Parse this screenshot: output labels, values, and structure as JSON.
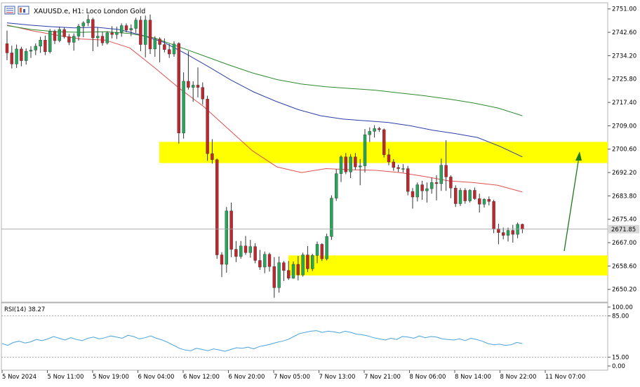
{
  "header": {
    "symbol_text": "XAUUSD.e, H1:  Loco London Gold"
  },
  "price_axis": {
    "ticks": [
      "2751.00",
      "2742.60",
      "2734.20",
      "2725.80",
      "2717.40",
      "2709.00",
      "2700.60",
      "2692.20",
      "2683.80",
      "2675.40",
      "2667.00",
      "2658.60",
      "2650.20"
    ],
    "current_price_label": "2671.85"
  },
  "rsi_panel": {
    "label": "RSI(14) 38.27",
    "ticks": [
      "100.00",
      "85.00",
      "15.00",
      "0.00"
    ]
  },
  "time_axis": {
    "labels": [
      "5 Nov 2024",
      "5 Nov 11:00",
      "5 Nov 19:00",
      "6 Nov 04:00",
      "6 Nov 12:00",
      "6 Nov 20:00",
      "7 Nov 05:00",
      "7 Nov 13:00",
      "7 Nov 21:00",
      "8 Nov 06:00",
      "8 Nov 14:00",
      "8 Nov 22:00",
      "11 Nov 07:00"
    ]
  },
  "colors": {
    "bull": "#26a65b",
    "bear": "#c0262d",
    "ma_fast": "#e05050",
    "ma_mid": "#2b3fa8",
    "ma_slow": "#2e8b2e",
    "zone": "#ffff00",
    "rsi_line": "#4aa3df",
    "arrow": "#1a7a1a"
  },
  "chart_data": [
    {
      "type": "candlestick",
      "symbol": "XAUUSD.e",
      "timeframe": "H1",
      "ylim": [
        2645.6,
        2753.2
      ],
      "current_price": 2671.85,
      "x_labels": [
        "5 Nov 2024",
        "5 Nov 11:00",
        "5 Nov 19:00",
        "6 Nov 04:00",
        "6 Nov 12:00",
        "6 Nov 20:00",
        "7 Nov 05:00",
        "7 Nov 13:00",
        "7 Nov 21:00",
        "8 Nov 06:00",
        "8 Nov 14:00",
        "8 Nov 22:00",
        "11 Nov 07:00"
      ],
      "candles": [
        [
          2738.5,
          2743.2,
          2732.6,
          2735.2
        ],
        [
          2735.2,
          2737.8,
          2729.6,
          2731.2
        ],
        [
          2731.2,
          2738.2,
          2729.8,
          2736.6
        ],
        [
          2736.6,
          2737.4,
          2730.4,
          2732.4
        ],
        [
          2732.4,
          2736.8,
          2731.0,
          2735.8
        ],
        [
          2735.8,
          2737.6,
          2733.4,
          2736.2
        ],
        [
          2736.2,
          2738.6,
          2734.4,
          2737.6
        ],
        [
          2737.6,
          2741.0,
          2735.2,
          2739.8
        ],
        [
          2739.8,
          2741.4,
          2734.4,
          2735.6
        ],
        [
          2735.6,
          2743.8,
          2735.0,
          2743.0
        ],
        [
          2743.0,
          2743.6,
          2738.4,
          2739.6
        ],
        [
          2739.6,
          2744.6,
          2739.0,
          2743.6
        ],
        [
          2743.6,
          2744.4,
          2740.4,
          2741.0
        ],
        [
          2741.0,
          2742.0,
          2738.0,
          2739.0
        ],
        [
          2739.0,
          2742.2,
          2736.0,
          2741.2
        ],
        [
          2741.2,
          2745.6,
          2739.6,
          2744.8
        ],
        [
          2744.8,
          2746.6,
          2740.8,
          2746.0
        ],
        [
          2746.0,
          2749.0,
          2744.8,
          2747.2
        ],
        [
          2747.2,
          2747.8,
          2735.8,
          2740.6
        ],
        [
          2740.6,
          2744.4,
          2737.4,
          2741.2
        ],
        [
          2741.2,
          2742.8,
          2737.8,
          2738.8
        ],
        [
          2738.8,
          2743.0,
          2738.2,
          2742.4
        ],
        [
          2742.4,
          2744.8,
          2740.4,
          2741.8
        ],
        [
          2741.8,
          2744.6,
          2740.2,
          2742.6
        ],
        [
          2742.6,
          2745.8,
          2741.0,
          2745.0
        ],
        [
          2745.0,
          2745.8,
          2742.6,
          2743.4
        ],
        [
          2743.4,
          2745.4,
          2741.2,
          2744.0
        ],
        [
          2744.0,
          2747.8,
          2742.4,
          2747.0
        ],
        [
          2747.0,
          2748.4,
          2735.8,
          2738.2
        ],
        [
          2738.2,
          2748.6,
          2733.6,
          2747.0
        ],
        [
          2747.0,
          2749.0,
          2734.8,
          2736.6
        ],
        [
          2736.6,
          2741.2,
          2733.8,
          2740.2
        ],
        [
          2740.2,
          2740.8,
          2731.8,
          2738.2
        ],
        [
          2738.2,
          2740.4,
          2735.4,
          2736.4
        ],
        [
          2736.4,
          2738.4,
          2733.4,
          2734.8
        ],
        [
          2734.8,
          2739.4,
          2733.8,
          2738.4
        ],
        [
          2738.6,
          2739.0,
          2702.6,
          2706.4
        ],
        [
          2706.4,
          2728.2,
          2704.4,
          2725.0
        ],
        [
          2725.0,
          2735.8,
          2722.0,
          2722.8
        ],
        [
          2722.8,
          2725.0,
          2717.6,
          2723.6
        ],
        [
          2723.6,
          2730.0,
          2719.2,
          2722.8
        ],
        [
          2722.8,
          2724.6,
          2716.6,
          2718.6
        ],
        [
          2718.6,
          2719.8,
          2696.4,
          2699.0
        ],
        [
          2699.0,
          2704.2,
          2695.4,
          2696.8
        ],
        [
          2696.8,
          2697.2,
          2661.2,
          2662.6
        ],
        [
          2662.6,
          2663.6,
          2654.6,
          2659.2
        ],
        [
          2659.2,
          2679.8,
          2656.2,
          2678.4
        ],
        [
          2678.4,
          2681.4,
          2661.8,
          2664.6
        ],
        [
          2664.6,
          2667.6,
          2660.0,
          2662.0
        ],
        [
          2662.0,
          2667.6,
          2661.2,
          2665.8
        ],
        [
          2665.8,
          2669.4,
          2662.6,
          2663.4
        ],
        [
          2663.4,
          2668.0,
          2661.6,
          2665.6
        ],
        [
          2665.6,
          2666.8,
          2659.6,
          2660.6
        ],
        [
          2660.6,
          2664.4,
          2657.2,
          2658.2
        ],
        [
          2658.2,
          2663.8,
          2656.0,
          2662.8
        ],
        [
          2662.8,
          2663.4,
          2656.6,
          2658.4
        ],
        [
          2658.4,
          2661.8,
          2647.2,
          2650.8
        ],
        [
          2650.8,
          2662.0,
          2649.0,
          2659.8
        ],
        [
          2659.8,
          2660.4,
          2653.2,
          2657.0
        ],
        [
          2657.0,
          2660.4,
          2653.6,
          2654.2
        ],
        [
          2654.2,
          2660.2,
          2654.0,
          2659.2
        ],
        [
          2659.2,
          2662.2,
          2653.4,
          2655.4
        ],
        [
          2655.4,
          2663.4,
          2654.8,
          2662.6
        ],
        [
          2662.6,
          2665.8,
          2656.4,
          2657.6
        ],
        [
          2657.6,
          2663.0,
          2656.8,
          2662.4
        ],
        [
          2662.4,
          2667.4,
          2659.6,
          2666.4
        ],
        [
          2666.4,
          2666.8,
          2660.4,
          2661.2
        ],
        [
          2661.2,
          2670.2,
          2660.6,
          2669.2
        ],
        [
          2669.2,
          2684.0,
          2668.0,
          2683.0
        ],
        [
          2683.0,
          2693.4,
          2682.0,
          2691.8
        ],
        [
          2691.8,
          2698.4,
          2688.8,
          2697.8
        ],
        [
          2697.8,
          2699.2,
          2691.6,
          2692.4
        ],
        [
          2692.4,
          2698.8,
          2690.2,
          2697.8
        ],
        [
          2697.8,
          2699.2,
          2693.2,
          2694.2
        ],
        [
          2694.2,
          2697.0,
          2687.6,
          2694.6
        ],
        [
          2694.6,
          2707.8,
          2692.2,
          2705.8
        ],
        [
          2705.8,
          2708.4,
          2703.2,
          2707.0
        ],
        [
          2707.0,
          2709.2,
          2704.8,
          2708.0
        ],
        [
          2708.0,
          2708.6,
          2706.8,
          2707.6
        ],
        [
          2707.6,
          2708.0,
          2697.6,
          2698.6
        ],
        [
          2698.6,
          2700.8,
          2694.8,
          2696.0
        ],
        [
          2696.0,
          2697.0,
          2692.8,
          2694.0
        ],
        [
          2694.0,
          2695.0,
          2692.4,
          2693.6
        ],
        [
          2693.6,
          2695.2,
          2692.2,
          2693.6
        ],
        [
          2693.6,
          2694.6,
          2684.0,
          2685.4
        ],
        [
          2685.4,
          2686.6,
          2679.2,
          2683.4
        ],
        [
          2683.4,
          2688.6,
          2681.8,
          2687.8
        ],
        [
          2687.8,
          2689.2,
          2682.4,
          2685.6
        ],
        [
          2685.6,
          2688.6,
          2681.4,
          2686.4
        ],
        [
          2686.4,
          2690.4,
          2684.6,
          2688.6
        ],
        [
          2688.6,
          2691.2,
          2682.2,
          2688.2
        ],
        [
          2688.2,
          2697.2,
          2685.6,
          2694.8
        ],
        [
          2694.8,
          2703.8,
          2685.6,
          2690.6
        ],
        [
          2690.6,
          2691.2,
          2683.0,
          2686.6
        ],
        [
          2686.6,
          2687.6,
          2679.8,
          2681.0
        ],
        [
          2681.0,
          2686.6,
          2680.2,
          2685.8
        ],
        [
          2685.8,
          2686.6,
          2681.0,
          2682.0
        ],
        [
          2682.0,
          2686.2,
          2681.4,
          2685.8
        ],
        [
          2685.8,
          2686.8,
          2682.4,
          2682.8
        ],
        [
          2682.8,
          2684.6,
          2677.8,
          2680.8
        ],
        [
          2680.8,
          2683.0,
          2679.6,
          2682.6
        ],
        [
          2682.6,
          2683.6,
          2680.4,
          2681.8
        ],
        [
          2681.8,
          2682.4,
          2670.4,
          2672.0
        ],
        [
          2672.0,
          2673.8,
          2666.4,
          2670.6
        ],
        [
          2670.6,
          2672.4,
          2668.2,
          2669.6
        ],
        [
          2669.6,
          2672.4,
          2667.4,
          2671.4
        ],
        [
          2671.4,
          2673.4,
          2667.0,
          2670.0
        ],
        [
          2670.0,
          2674.2,
          2668.6,
          2673.6
        ],
        [
          2673.6,
          2673.8,
          2670.4,
          2671.85
        ]
      ],
      "moving_averages": [
        {
          "values": [
            2745.2,
            2743.2,
            2741.6,
            2740.2,
            2739.8,
            2737.0,
            2730.0,
            2722.6,
            2716.0,
            2708.0,
            2700.0,
            2694.2,
            2692.2,
            2693.6,
            2693.2,
            2693.0,
            2692.2,
            2690.8,
            2689.2,
            2688.6,
            2687.6,
            2685.2
          ]
        },
        {
          "values": [
            2746.0,
            2745.2,
            2744.6,
            2744.2,
            2744.4,
            2743.6,
            2741.6,
            2739.0,
            2734.8,
            2730.2,
            2725.4,
            2721.2,
            2717.8,
            2714.8,
            2712.6,
            2711.4,
            2710.8,
            2710.2,
            2709.0,
            2707.4,
            2706.2,
            2704.8,
            2701.6,
            2697.8
          ]
        },
        {
          "values": [
            2745.0,
            2743.6,
            2742.8,
            2742.6,
            2742.8,
            2742.2,
            2740.6,
            2737.4,
            2734.2,
            2731.0,
            2728.0,
            2725.6,
            2724.0,
            2723.0,
            2722.4,
            2721.8,
            2720.8,
            2719.8,
            2718.6,
            2717.2,
            2715.4,
            2712.6
          ]
        }
      ],
      "zones": [
        {
          "from": 2695.6,
          "to": 2703.2
        },
        {
          "from": 2655.2,
          "to": 2662.4
        }
      ]
    },
    {
      "type": "line",
      "indicator": "RSI",
      "label": "RSI(14) 38.27",
      "ylim": [
        0,
        100
      ],
      "levels": [
        85,
        15
      ],
      "values": [
        38,
        35,
        40,
        42,
        39,
        41,
        45,
        43,
        46,
        50,
        47,
        44,
        48,
        45,
        43,
        47,
        49,
        46,
        48,
        51,
        49,
        47,
        52,
        50,
        46,
        48,
        51,
        47,
        44,
        40,
        35,
        30,
        27,
        26,
        30,
        28,
        26,
        29,
        27,
        25,
        28,
        31,
        30,
        32,
        29,
        33,
        35,
        37,
        40,
        42,
        45,
        50,
        55,
        57,
        59,
        60,
        57,
        59,
        58,
        56,
        59,
        57,
        54,
        53,
        51,
        48,
        46,
        44,
        47,
        45,
        50,
        49,
        47,
        51,
        48,
        50,
        49,
        46,
        45,
        44,
        46,
        43,
        47,
        45,
        42,
        38,
        36,
        37,
        35,
        36,
        40,
        38
      ]
    }
  ]
}
